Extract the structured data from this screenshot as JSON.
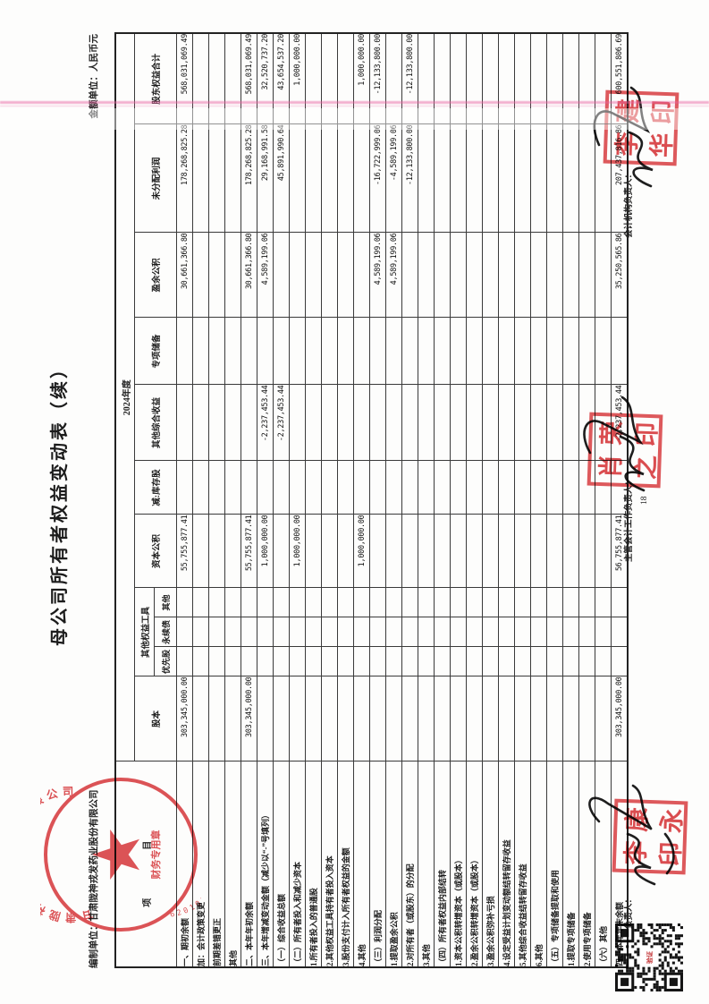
{
  "page": {
    "title": "母公司所有者权益变动表（续）",
    "prepared_by_label": "编制单位：",
    "company": "甘肃陇神戎发药业股份有限公司",
    "unit_note": "金额单位：人民币元",
    "page_number": "18"
  },
  "table": {
    "item_header": "项　目",
    "period": "2024年度",
    "col_share_capital": "股本",
    "col_other_equity": "其他权益工具",
    "col_preferred": "优先股",
    "col_perpetual": "永续债",
    "col_other_instr": "其他",
    "col_capital_reserve": "资本公积",
    "col_treasury": "减:库存股",
    "col_oci": "其他综合收益",
    "col_special_reserve": "专项储备",
    "col_surplus_reserve": "盈余公积",
    "col_retained": "未分配利润",
    "col_total": "股东权益合计",
    "rows": [
      {
        "label": "一、期初余额",
        "indent": 0,
        "values": [
          "303,345,000.00",
          "",
          "",
          "",
          "55,755,877.41",
          "",
          "",
          "",
          "30,661,366.80",
          "178,268,825.28",
          "568,031,069.49"
        ]
      },
      {
        "label": "加：会计政策变更",
        "indent": 1,
        "values": []
      },
      {
        "label": "前期差错更正",
        "indent": 2,
        "values": []
      },
      {
        "label": "其他",
        "indent": 2,
        "values": []
      },
      {
        "label": "二、本年年初余额",
        "indent": 0,
        "values": [
          "303,345,000.00",
          "",
          "",
          "",
          "55,755,877.41",
          "",
          "",
          "",
          "30,661,366.80",
          "178,268,825.28",
          "568,031,069.49"
        ]
      },
      {
        "label": "三、本年增减变动金额（减少以“-”号填列）",
        "indent": 0,
        "values": [
          "",
          "",
          "",
          "",
          "1,000,000.00",
          "",
          "-2,237,453.44",
          "",
          "4,589,199.06",
          "29,168,991.58",
          "32,520,737.20"
        ]
      },
      {
        "label": "（一）综合收益总额",
        "indent": 1,
        "values": [
          "",
          "",
          "",
          "",
          "",
          "",
          "-2,237,453.44",
          "",
          "",
          "45,891,990.64",
          "43,654,537.20"
        ]
      },
      {
        "label": "（二）所有者投入和减少资本",
        "indent": 1,
        "values": [
          "",
          "",
          "",
          "",
          "1,000,000.00",
          "",
          "",
          "",
          "",
          "",
          "1,000,000.00"
        ]
      },
      {
        "label": "1.所有者投入的普通股",
        "indent": 2,
        "values": []
      },
      {
        "label": "2.其他权益工具持有者投入资本",
        "indent": 2,
        "values": []
      },
      {
        "label": "3.股份支付计入所有者权益的金额",
        "indent": 2,
        "values": []
      },
      {
        "label": "4.其他",
        "indent": 2,
        "values": [
          "",
          "",
          "",
          "",
          "1,000,000.00",
          "",
          "",
          "",
          "",
          "",
          "1,000,000.00"
        ]
      },
      {
        "label": "（三）利润分配",
        "indent": 1,
        "values": [
          "",
          "",
          "",
          "",
          "",
          "",
          "",
          "",
          "4,589,199.06",
          "-16,722,999.06",
          "-12,133,800.00"
        ]
      },
      {
        "label": "1.提取盈余公积",
        "indent": 2,
        "values": [
          "",
          "",
          "",
          "",
          "",
          "",
          "",
          "",
          "4,589,199.06",
          "-4,589,199.06",
          ""
        ]
      },
      {
        "label": "2.对所有者（或股东）的分配",
        "indent": 2,
        "values": [
          "",
          "",
          "",
          "",
          "",
          "",
          "",
          "",
          "",
          "-12,133,800.00",
          "-12,133,800.00"
        ]
      },
      {
        "label": "3.其他",
        "indent": 2,
        "values": []
      },
      {
        "label": "（四）所有者权益内部结转",
        "indent": 1,
        "values": []
      },
      {
        "label": "1.资本公积转增资本（或股本）",
        "indent": 2,
        "values": []
      },
      {
        "label": "2.盈余公积转增资本（或股本）",
        "indent": 2,
        "values": []
      },
      {
        "label": "3.盈余公积弥补亏损",
        "indent": 2,
        "values": []
      },
      {
        "label": "4.设定受益计划变动额结转留存收益",
        "indent": 2,
        "values": []
      },
      {
        "label": "5.其他综合收益结转留存收益",
        "indent": 2,
        "values": []
      },
      {
        "label": "6.其他",
        "indent": 2,
        "values": []
      },
      {
        "label": "（五）专项储备提取和使用",
        "indent": 1,
        "values": []
      },
      {
        "label": "1.提取专项储备",
        "indent": 2,
        "values": []
      },
      {
        "label": "2.使用专项储备",
        "indent": 2,
        "values": []
      },
      {
        "label": "（六）其他",
        "indent": 1,
        "values": []
      },
      {
        "label": "四、本年年末余额",
        "indent": 0,
        "values": [
          "303,345,000.00",
          "",
          "",
          "",
          "56,755,877.41",
          "",
          "-2,237,453.44",
          "",
          "35,250,565.86",
          "207,437,816.86",
          "600,551,806.69"
        ]
      }
    ]
  },
  "footer": {
    "director_label": "负责人：",
    "chief_accountant_label": "主管会计工作负责人：",
    "accounting_head_label": "会计机构负责人："
  },
  "seals": {
    "seal_red": "#d53438",
    "company_seal": {
      "ring_text": "甘肃陇神戎发药业股份有限公司",
      "code": "6201011009116",
      "caption": "财务专用章"
    },
    "director_seal": {
      "chars": [
        "李",
        "康",
        "印",
        "永"
      ]
    },
    "chief_accountant_seal": {
      "chars": [
        "肖",
        "荣",
        "之",
        "印"
      ]
    },
    "accounting_head_seal": {
      "chars": [
        "李",
        "建",
        "华",
        "印"
      ]
    },
    "director_signature_reading": "李康",
    "qr_center_label": "验证"
  }
}
